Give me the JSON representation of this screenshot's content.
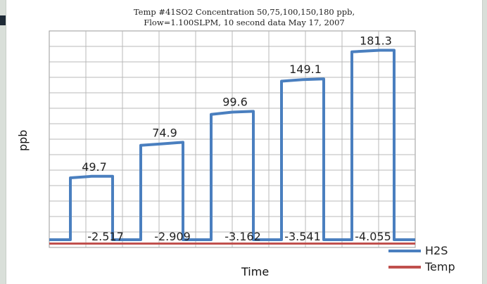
{
  "chart_data": {
    "type": "line",
    "title": "Temp #41SO2 Concentration 50,75,100,150,180 ppb,",
    "subtitle": "Flow=1.100SLPM, 10 second data May 17, 2007",
    "xlabel": "Time",
    "ylabel": "ppb",
    "grid": true,
    "legend_position": "bottom-right",
    "series": [
      {
        "name": "H2S",
        "color": "#4a7fbf",
        "points": [
          [
            0,
            0
          ],
          [
            3,
            0
          ],
          [
            3,
            80
          ],
          [
            6,
            82
          ],
          [
            9,
            82
          ],
          [
            9,
            0
          ],
          [
            13,
            0
          ],
          [
            13,
            122
          ],
          [
            16,
            124
          ],
          [
            19,
            126
          ],
          [
            19,
            0
          ],
          [
            23,
            0
          ],
          [
            23,
            162
          ],
          [
            26,
            165
          ],
          [
            29,
            166
          ],
          [
            29,
            0
          ],
          [
            33,
            0
          ],
          [
            33,
            205
          ],
          [
            36,
            207
          ],
          [
            39,
            208
          ],
          [
            39,
            0
          ],
          [
            43,
            0
          ],
          [
            43,
            243
          ],
          [
            47,
            245
          ],
          [
            49,
            245
          ],
          [
            49,
            0
          ],
          [
            52,
            0
          ]
        ],
        "peak_labels": [
          "49.7",
          "74.9",
          "99.6",
          "149.1",
          "181.3"
        ]
      },
      {
        "name": "Temp",
        "color": "#c0504d",
        "points": [
          [
            0,
            -5
          ],
          [
            52,
            -5
          ]
        ],
        "value_labels": [
          "-2.517",
          "-2.909",
          "-3.162",
          "-3.541",
          "-4.055"
        ]
      }
    ],
    "xlim": [
      0,
      52
    ],
    "ylim": [
      -10,
      270
    ]
  }
}
